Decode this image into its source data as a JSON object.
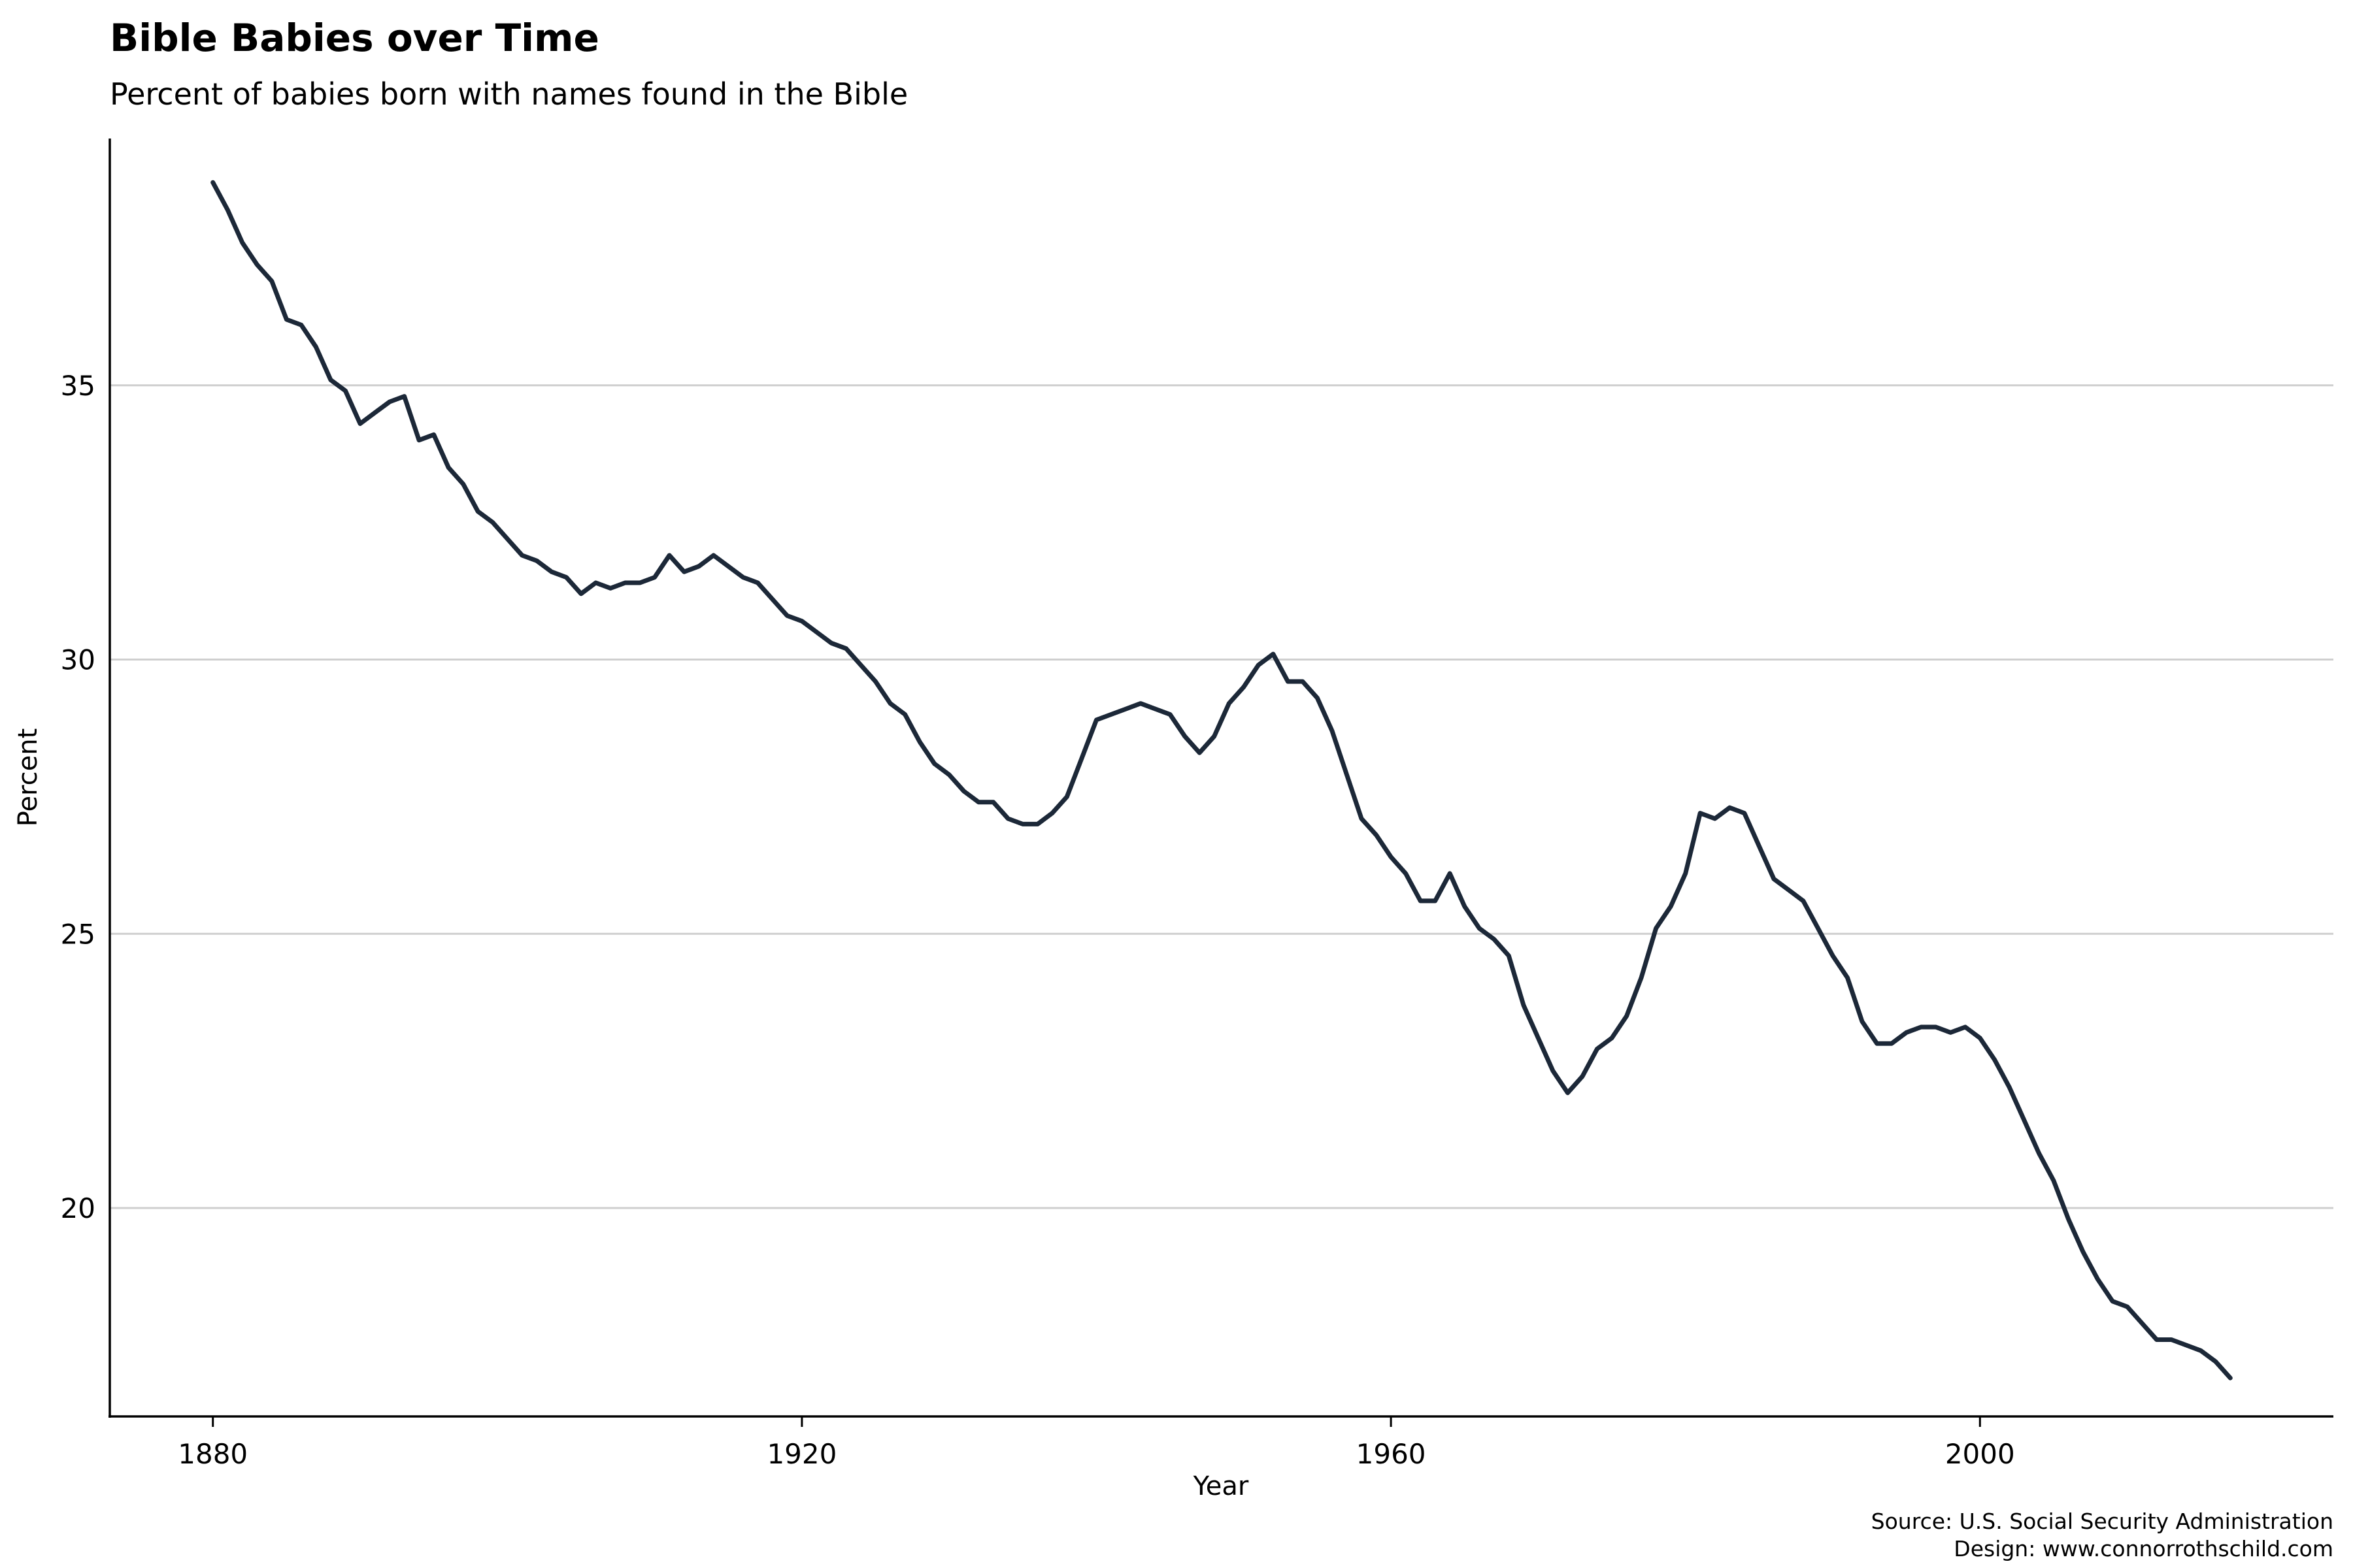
{
  "title": "Bible Babies over Time",
  "subtitle": "Percent of babies born with names found in the Bible",
  "caption": {
    "source": "Source: U.S. Social Security Administration",
    "design": "Design: www.connorrothschild.com"
  },
  "colors": {
    "line": "#1c2838",
    "grid": "#cfcfcf",
    "axis": "#000000"
  },
  "chart_data": {
    "type": "line",
    "title": "Bible Babies over Time",
    "subtitle": "Percent of babies born with names found in the Bible",
    "xlabel": "Year",
    "ylabel": "Percent",
    "xlim": [
      1873,
      2024
    ],
    "ylim": [
      16.2,
      39.5
    ],
    "xticks": [
      1880,
      1920,
      1960,
      2000
    ],
    "xtick_labels": [
      "1880",
      "1920",
      "1960",
      "2000"
    ],
    "yticks": [
      20,
      25,
      30,
      35
    ],
    "ytick_labels": [
      "20",
      "25",
      "30",
      "35"
    ],
    "grid": "horizontal major",
    "legend": "none",
    "x": [
      1880,
      1881,
      1882,
      1883,
      1884,
      1885,
      1886,
      1887,
      1888,
      1889,
      1890,
      1891,
      1892,
      1893,
      1894,
      1895,
      1896,
      1897,
      1898,
      1899,
      1900,
      1901,
      1902,
      1903,
      1904,
      1905,
      1906,
      1907,
      1908,
      1909,
      1910,
      1911,
      1912,
      1913,
      1914,
      1915,
      1916,
      1917,
      1918,
      1919,
      1920,
      1921,
      1922,
      1923,
      1924,
      1925,
      1926,
      1927,
      1928,
      1929,
      1930,
      1931,
      1932,
      1933,
      1934,
      1935,
      1936,
      1937,
      1938,
      1939,
      1940,
      1941,
      1942,
      1943,
      1944,
      1945,
      1946,
      1947,
      1948,
      1949,
      1950,
      1951,
      1952,
      1953,
      1954,
      1955,
      1956,
      1957,
      1958,
      1959,
      1960,
      1961,
      1962,
      1963,
      1964,
      1965,
      1966,
      1967,
      1968,
      1969,
      1970,
      1971,
      1972,
      1973,
      1974,
      1975,
      1976,
      1977,
      1978,
      1979,
      1980,
      1981,
      1982,
      1983,
      1984,
      1985,
      1986,
      1987,
      1988,
      1989,
      1990,
      1991,
      1992,
      1993,
      1994,
      1995,
      1996,
      1997,
      1998,
      1999,
      2000,
      2001,
      2002,
      2003,
      2004,
      2005,
      2006,
      2007,
      2008,
      2009,
      2010,
      2011,
      2012,
      2013,
      2014,
      2015,
      2016,
      2017
    ],
    "series": [
      {
        "values": [
          38.7,
          38.2,
          37.6,
          37.2,
          36.9,
          36.2,
          36.1,
          35.7,
          35.1,
          34.9,
          34.3,
          34.5,
          34.7,
          34.8,
          34.0,
          34.1,
          33.5,
          33.2,
          32.7,
          32.5,
          32.2,
          31.9,
          31.8,
          31.6,
          31.5,
          31.2,
          31.4,
          31.3,
          31.4,
          31.4,
          31.5,
          31.9,
          31.6,
          31.7,
          31.9,
          31.7,
          31.5,
          31.4,
          31.1,
          30.8,
          30.7,
          30.5,
          30.3,
          30.2,
          29.9,
          29.6,
          29.2,
          29.0,
          28.5,
          28.1,
          27.9,
          27.6,
          27.4,
          27.4,
          27.1,
          27.0,
          27.0,
          27.2,
          27.5,
          28.2,
          28.9,
          29.0,
          29.1,
          29.2,
          29.1,
          29.0,
          28.6,
          28.3,
          28.6,
          29.2,
          29.5,
          29.9,
          30.1,
          29.6,
          29.6,
          29.3,
          28.7,
          27.9,
          27.1,
          26.8,
          26.4,
          26.1,
          25.6,
          25.6,
          26.1,
          25.5,
          25.1,
          24.9,
          24.6,
          23.7,
          23.1,
          22.5,
          22.1,
          22.4,
          22.9,
          23.1,
          23.5,
          24.2,
          25.1,
          25.5,
          26.1,
          27.2,
          27.1,
          27.3,
          27.2,
          26.6,
          26.0,
          25.8,
          25.6,
          25.1,
          24.6,
          24.2,
          23.4,
          23.0,
          23.0,
          23.2,
          23.3,
          23.3,
          23.2,
          23.3,
          23.1,
          22.7,
          22.2,
          21.6,
          21.0,
          20.5,
          19.8,
          19.2,
          18.7,
          18.3,
          18.2,
          17.9,
          17.6,
          17.6,
          17.5,
          17.4,
          17.2,
          16.9
        ]
      }
    ]
  }
}
